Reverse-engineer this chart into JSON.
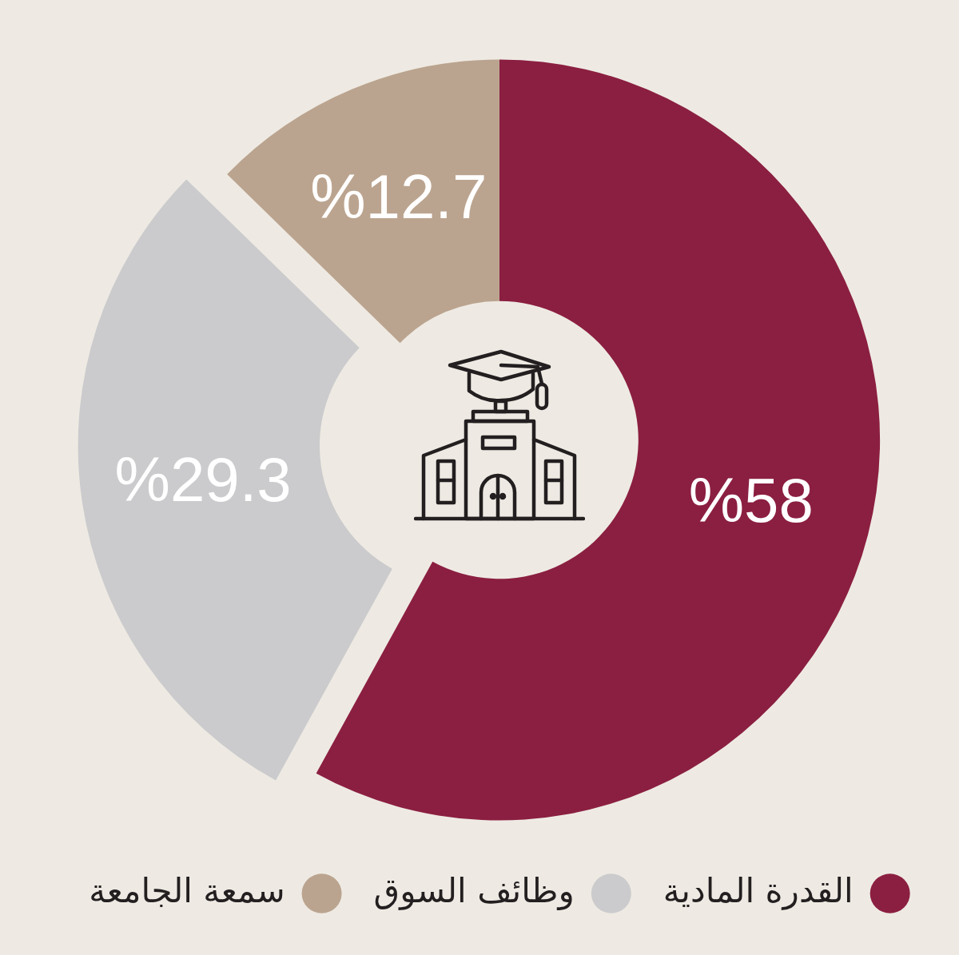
{
  "chart_data": {
    "type": "donut",
    "categories": [
      "القدرة المادية",
      "وظائف السوق",
      "سمعة الجامعة"
    ],
    "values": [
      58,
      29.3,
      12.7
    ],
    "colors": [
      "#8b1f41",
      "#cbcbcd",
      "#bba48f"
    ],
    "value_labels": [
      "%58",
      "%29.3",
      "%12.7"
    ],
    "legend": "bottom"
  }
}
